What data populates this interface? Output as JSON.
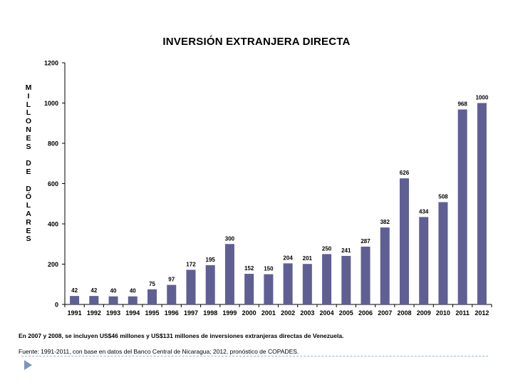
{
  "chart_data": {
    "type": "bar",
    "title": "INVERSIÓN EXTRANJERA DIRECTA",
    "ylabel_letters": [
      "M",
      "I",
      "L",
      "L",
      "O",
      "N",
      "E",
      "S",
      "",
      "D",
      "E",
      "",
      "D",
      "Ó",
      "L",
      "A",
      "R",
      "E",
      "S"
    ],
    "categories": [
      "1991",
      "1992",
      "1993",
      "1994",
      "1995",
      "1996",
      "1997",
      "1998",
      "1999",
      "2000",
      "2001",
      "2002",
      "2003",
      "2004",
      "2005",
      "2006",
      "2007",
      "2008",
      "2009",
      "2010",
      "2011",
      "2012"
    ],
    "values": [
      42,
      42,
      40,
      40,
      75,
      97,
      172,
      195,
      300,
      152,
      150,
      204,
      201,
      250,
      241,
      287,
      382,
      626,
      434,
      508,
      968,
      1000
    ],
    "ylim": [
      0,
      1200
    ],
    "yticks": [
      0,
      200,
      400,
      600,
      800,
      1000,
      1200
    ],
    "bar_color": "#5f5f94",
    "grid": false,
    "data_labels": true
  },
  "notes": {
    "line1": "En 2007 y 2008, se incluyen US$46 millones y US$131 millones de inversiones extranjeras directas de Venezuela.",
    "line2": "Fuente: 1991-2011, con base en datos del Banco Central de Nicaragua; 2012, pronóstico de COPADES."
  },
  "icons": {
    "nav": "play-arrow-icon"
  }
}
